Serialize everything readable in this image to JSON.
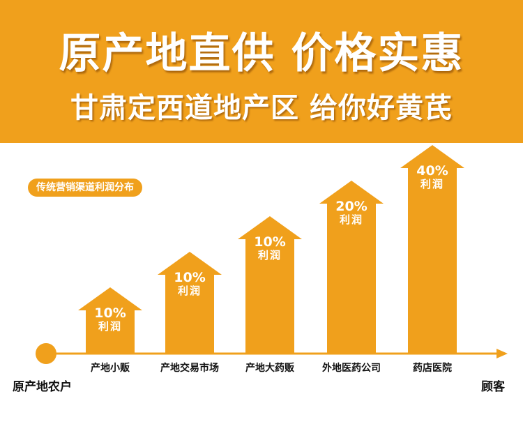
{
  "banner": {
    "headline": "原产地直供  价格实惠",
    "subline": "甘肃定西道地产区 给你好黄芪",
    "color": "#f0a01c"
  },
  "chart": {
    "legend_pill": "传统营销渠道利润分布",
    "origin_label": "原产地农户",
    "end_label": "顾客",
    "accent_color": "#f0a01c",
    "stages": [
      {
        "name": "产地小贩",
        "profit": "10%",
        "profit_label": "利润",
        "level": 1
      },
      {
        "name": "产地交易市场",
        "profit": "10%",
        "profit_label": "利润",
        "level": 2
      },
      {
        "name": "产地大药贩",
        "profit": "10%",
        "profit_label": "利润",
        "level": 3
      },
      {
        "name": "外地医药公司",
        "profit": "20%",
        "profit_label": "利润",
        "level": 4
      },
      {
        "name": "药店医院",
        "profit": "40%",
        "profit_label": "利润",
        "level": 5
      }
    ]
  }
}
